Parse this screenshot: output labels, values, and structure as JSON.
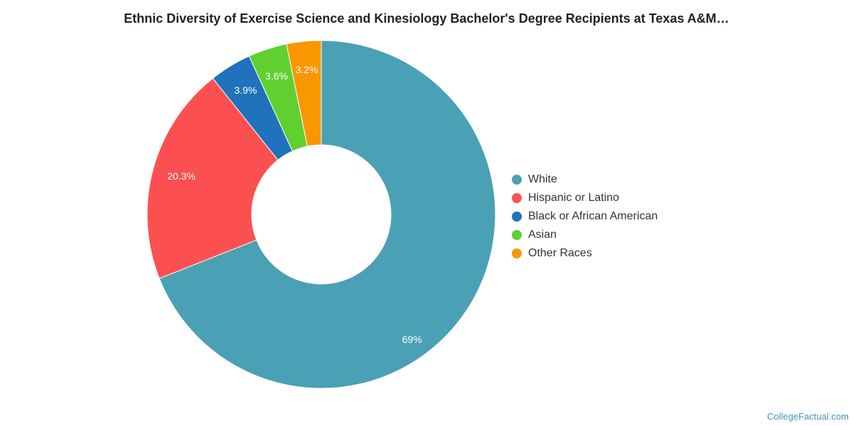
{
  "chart_data": {
    "type": "pie",
    "title": "Ethnic Diversity of Exercise Science and Kinesiology Bachelor's Degree Recipients at Texas A&M…",
    "donut": true,
    "legend_position": "right",
    "slices": [
      {
        "name": "White",
        "value": 69,
        "label": "69%",
        "color": "#4aa0b5"
      },
      {
        "name": "Hispanic or Latino",
        "value": 20.3,
        "label": "20.3%",
        "color": "#fc5050"
      },
      {
        "name": "Black or African American",
        "value": 3.9,
        "label": "3.9%",
        "color": "#1f72bb"
      },
      {
        "name": "Asian",
        "value": 3.6,
        "label": "3.6%",
        "color": "#60d030"
      },
      {
        "name": "Other Races",
        "value": 3.2,
        "label": "3.2%",
        "color": "#fa9600"
      }
    ]
  },
  "footer": {
    "watermark": "CollegeFactual.com"
  }
}
